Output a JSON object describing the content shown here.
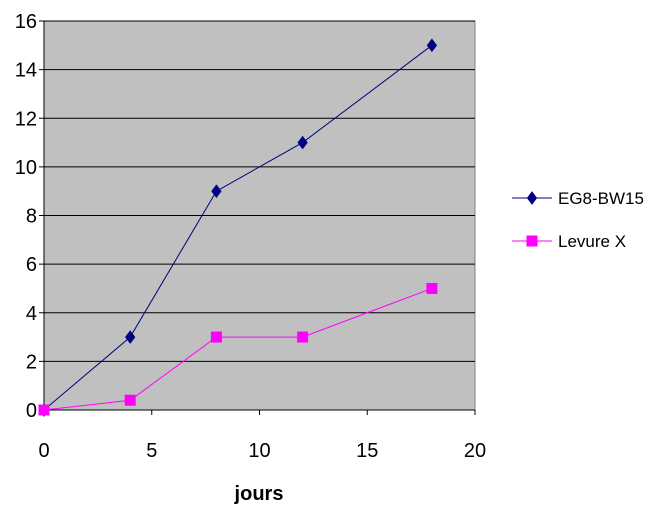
{
  "chart_data": {
    "type": "line",
    "title": "",
    "xlabel": "jours",
    "ylabel": "",
    "xlim": [
      0,
      20
    ],
    "ylim": [
      0,
      16
    ],
    "xticks": [
      0,
      5,
      10,
      15,
      20
    ],
    "yticks": [
      0,
      2,
      4,
      6,
      8,
      10,
      12,
      14,
      16
    ],
    "grid": "horizontal",
    "legend_position": "right",
    "plot_background": "#c0c0c0",
    "series": [
      {
        "name": "EG8-BW15",
        "color": "#000080",
        "marker": "diamond",
        "x": [
          0,
          4,
          8,
          12,
          18
        ],
        "y": [
          0,
          3,
          9,
          11,
          15
        ]
      },
      {
        "name": "Levure X",
        "color": "#ff00ff",
        "marker": "square",
        "x": [
          0,
          4,
          8,
          12,
          18
        ],
        "y": [
          0,
          0.4,
          3,
          3,
          5
        ]
      }
    ]
  }
}
